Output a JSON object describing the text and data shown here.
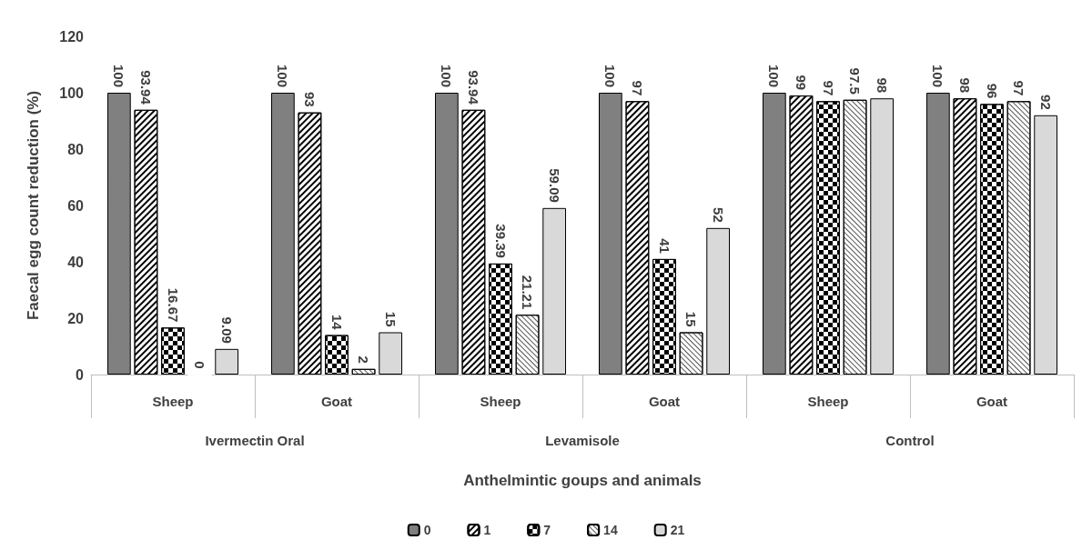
{
  "chart_data": {
    "type": "bar",
    "xlabel": "Anthelmintic goups and animals",
    "ylabel": "Faecal egg count reduction (%)",
    "categories": [
      "Sheep",
      "Goat",
      "Sheep",
      "Goat",
      "Sheep",
      "Goat"
    ],
    "annotations": [
      "Ivermectin Oral",
      "Levamisole",
      "Control"
    ],
    "series": [
      {
        "name": "0",
        "color": "#808080",
        "values": [
          100,
          100,
          100,
          100,
          100,
          100
        ]
      },
      {
        "name": "1",
        "color": "#ffffff",
        "values": [
          93.94,
          93,
          93.94,
          97,
          99,
          98
        ]
      },
      {
        "name": "7",
        "color": "#ffffff",
        "values": [
          16.67,
          14,
          39.39,
          41,
          97,
          96
        ]
      },
      {
        "name": "14",
        "color": "#ffffff",
        "values": [
          0,
          2,
          21.21,
          15,
          97.5,
          97
        ]
      },
      {
        "name": "21",
        "color": "#d9d9d9",
        "values": [
          9.09,
          15,
          59.09,
          52,
          98,
          92
        ]
      }
    ],
    "ylim": [
      0,
      120
    ],
    "yticks": [
      0,
      20,
      40,
      60,
      80,
      100,
      120
    ],
    "grid": false,
    "legend": "bottom",
    "data_labels": true
  }
}
